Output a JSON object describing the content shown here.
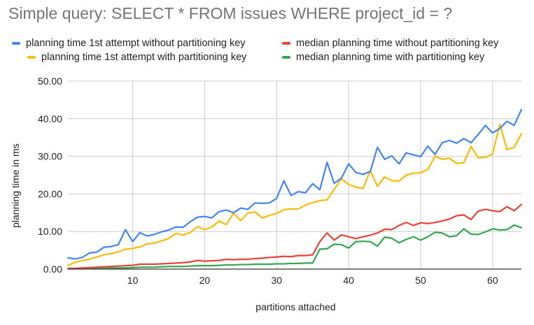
{
  "chart_data": {
    "type": "line",
    "title": "Simple query: SELECT * FROM issues WHERE project_id = ?",
    "xlabel": "partitions attached",
    "ylabel": "planning time in ms",
    "xlim": [
      1,
      64
    ],
    "ylim": [
      0,
      50
    ],
    "x_ticks": [
      10,
      20,
      30,
      40,
      50,
      60
    ],
    "y_ticks": [
      "0.00",
      "10.00",
      "20.00",
      "30.00",
      "40.00",
      "50.00"
    ],
    "grid": true,
    "legend_position": "top",
    "x": [
      1,
      2,
      3,
      4,
      5,
      6,
      7,
      8,
      9,
      10,
      11,
      12,
      13,
      14,
      15,
      16,
      17,
      18,
      19,
      20,
      21,
      22,
      23,
      24,
      25,
      26,
      27,
      28,
      29,
      30,
      31,
      32,
      33,
      34,
      35,
      36,
      37,
      38,
      39,
      40,
      41,
      42,
      43,
      44,
      45,
      46,
      47,
      48,
      49,
      50,
      51,
      52,
      53,
      54,
      55,
      56,
      57,
      58,
      59,
      60,
      61,
      62,
      63,
      64
    ],
    "series": [
      {
        "name": "planning time 1st attempt without partitioning key",
        "color": "#4285f4",
        "values": [
          3.0,
          2.7,
          3.1,
          4.3,
          4.5,
          5.8,
          6.0,
          6.5,
          10.5,
          7.3,
          9.7,
          8.8,
          9.2,
          9.9,
          10.4,
          11.2,
          11.1,
          12.6,
          13.8,
          14.0,
          13.6,
          15.3,
          15.7,
          15.0,
          16.2,
          15.9,
          17.6,
          17.5,
          17.6,
          18.8,
          23.5,
          19.6,
          20.6,
          20.3,
          22.7,
          21.1,
          28.4,
          22.8,
          24.2,
          28.0,
          25.7,
          25.2,
          25.9,
          32.4,
          29.2,
          30.1,
          28.0,
          30.9,
          30.4,
          29.9,
          32.7,
          30.5,
          33.6,
          34.2,
          33.5,
          34.7,
          33.6,
          35.8,
          38.2,
          36.2,
          37.4,
          39.3,
          38.2,
          42.4
        ]
      },
      {
        "name": "planning time 1st attempt with partitioning key",
        "color": "#fbbc04",
        "values": [
          1.0,
          1.8,
          2.3,
          2.6,
          3.2,
          3.8,
          4.1,
          4.6,
          5.3,
          5.5,
          5.9,
          6.7,
          6.9,
          7.5,
          8.1,
          9.5,
          9.1,
          9.7,
          11.3,
          10.5,
          11.2,
          12.8,
          11.8,
          14.9,
          12.9,
          14.9,
          15.2,
          13.6,
          14.3,
          14.8,
          15.8,
          16.0,
          16.0,
          17.0,
          17.7,
          18.2,
          18.4,
          21.2,
          24.0,
          22.5,
          21.8,
          21.4,
          26.2,
          22.0,
          24.5,
          23.5,
          23.4,
          25.0,
          25.5,
          25.6,
          26.5,
          30.0,
          29.2,
          29.5,
          28.1,
          28.3,
          32.6,
          29.6,
          29.7,
          30.6,
          38.5,
          31.8,
          32.4,
          36.0
        ]
      },
      {
        "name": "median planning time without partitioning key",
        "color": "#ea4335",
        "values": [
          0.2,
          0.2,
          0.3,
          0.4,
          0.5,
          0.6,
          0.7,
          0.8,
          0.9,
          1.0,
          1.3,
          1.3,
          1.3,
          1.4,
          1.5,
          1.6,
          1.7,
          1.9,
          2.3,
          2.1,
          2.2,
          2.3,
          2.6,
          2.5,
          2.6,
          2.6,
          2.8,
          2.9,
          3.1,
          3.2,
          3.4,
          3.3,
          3.6,
          3.6,
          3.8,
          7.3,
          9.6,
          7.7,
          9.1,
          8.6,
          8.1,
          8.6,
          9.0,
          9.6,
          10.6,
          10.5,
          11.6,
          12.4,
          11.6,
          12.3,
          12.1,
          12.4,
          12.8,
          13.3,
          14.2,
          14.4,
          13.2,
          15.4,
          15.9,
          15.5,
          15.3,
          16.6,
          15.5,
          17.2
        ]
      },
      {
        "name": "median planning time with partitioning key",
        "color": "#34a853",
        "values": [
          0.1,
          0.1,
          0.1,
          0.2,
          0.2,
          0.2,
          0.3,
          0.3,
          0.3,
          0.4,
          0.5,
          0.5,
          0.5,
          0.6,
          0.7,
          0.7,
          0.7,
          0.8,
          0.9,
          0.9,
          0.9,
          1.0,
          1.1,
          1.1,
          1.2,
          1.2,
          1.3,
          1.3,
          1.3,
          1.4,
          1.4,
          1.5,
          1.5,
          1.6,
          1.6,
          5.3,
          5.4,
          6.6,
          6.5,
          5.6,
          7.3,
          7.4,
          7.3,
          6.1,
          8.5,
          8.2,
          7.0,
          7.9,
          8.6,
          7.7,
          8.6,
          9.8,
          9.6,
          8.6,
          8.9,
          10.7,
          9.3,
          9.2,
          9.9,
          10.7,
          10.4,
          10.5,
          11.7,
          11.0
        ]
      }
    ]
  }
}
